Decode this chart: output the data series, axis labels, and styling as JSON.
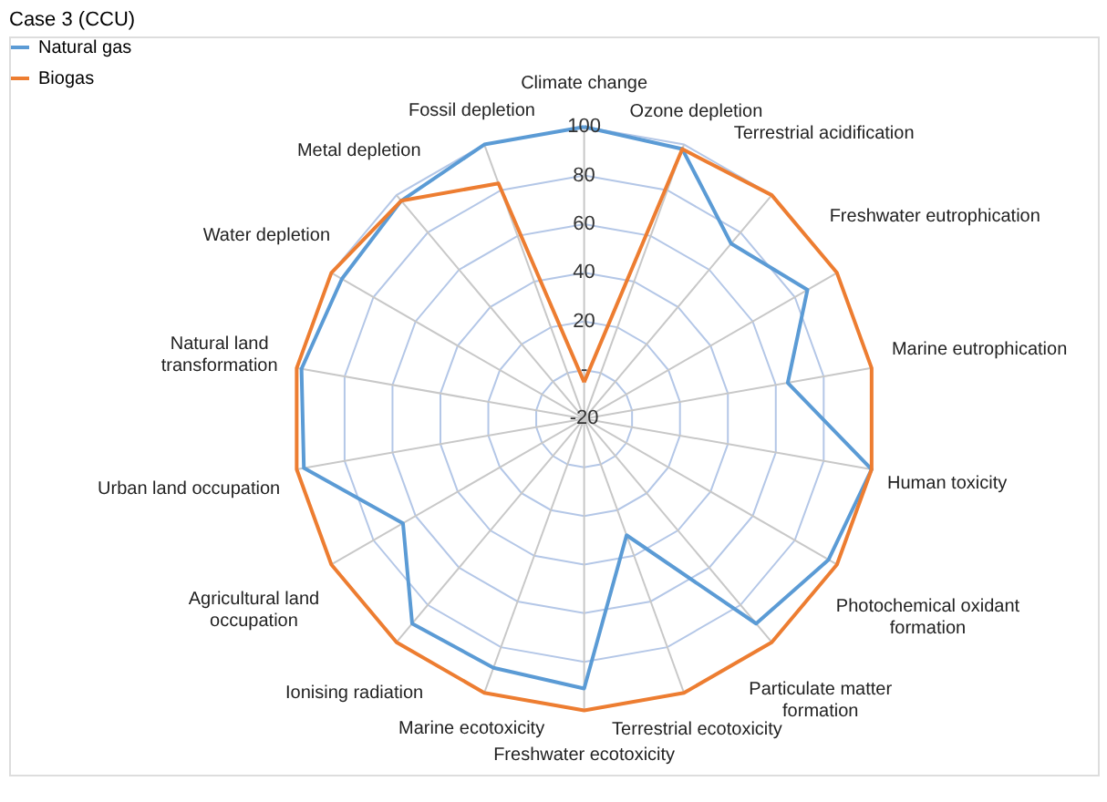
{
  "chart_data": {
    "type": "radar",
    "title": "Case 3 (CCU)",
    "categories": [
      "Climate change",
      "Ozone depletion",
      "Terrestrial acidification",
      "Freshwater eutrophication",
      "Marine eutrophication",
      "Human toxicity",
      "Photochemical oxidant formation",
      "Particulate matter formation",
      "Terrestrial ecotoxicity",
      "Freshwater ecotoxicity",
      "Marine ecotoxicity",
      "Ionising radiation",
      "Agricultural land occupation",
      "Urban land occupation",
      "Natural land transformation",
      "Water depletion",
      "Metal depletion",
      "Fossil depletion"
    ],
    "series": [
      {
        "name": "Natural gas",
        "color": "#5b9bd5",
        "values": [
          100,
          98,
          74,
          86,
          65,
          100,
          96,
          90,
          31,
          91,
          89,
          90,
          66,
          97,
          98,
          95,
          97,
          100
        ]
      },
      {
        "name": "Biogas",
        "color": "#ed7d31",
        "values": [
          -5,
          98,
          100,
          100,
          100,
          100,
          100,
          100,
          100,
          100,
          100,
          100,
          100,
          100,
          100,
          100,
          97,
          83
        ]
      }
    ],
    "ylim": [
      -20,
      100
    ],
    "yticks": [
      -20,
      {
        "value": 0,
        "label": "-"
      },
      20,
      40,
      60,
      80,
      100
    ],
    "grid": true,
    "legend": "top left"
  }
}
